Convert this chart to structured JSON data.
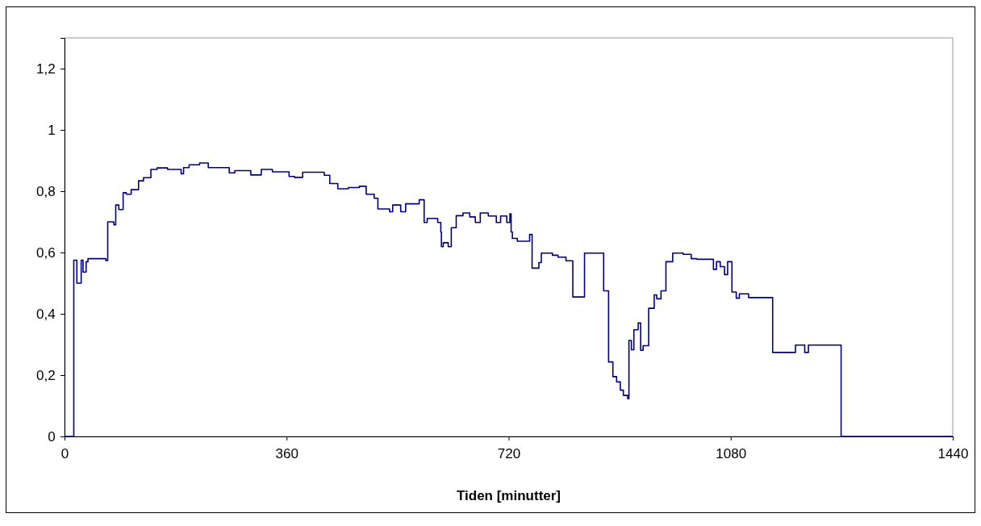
{
  "chart_data": {
    "type": "step",
    "xlabel": "Tiden [minutter]",
    "xlim": [
      0,
      1440
    ],
    "xticks": [
      0,
      360,
      720,
      1080,
      1440
    ],
    "ylim": [
      0,
      1.3
    ],
    "yticks": [
      0,
      {
        "value": 0.2,
        "label": "0,2"
      },
      {
        "value": 0.4,
        "label": "0,4"
      },
      {
        "value": 0.6,
        "label": "0,6"
      },
      {
        "value": 0.8,
        "label": "0,8"
      },
      1,
      {
        "value": 1.2,
        "label": "1,2"
      }
    ],
    "grid": false,
    "marker": "none",
    "line_style": "solid",
    "series": [
      {
        "color": "#000080",
        "x": [
          0,
          15,
          20,
          27,
          30,
          35,
          38,
          67,
          70,
          80,
          83,
          88,
          95,
          100,
          108,
          120,
          128,
          140,
          150,
          167,
          189,
          193,
          202,
          219,
          233,
          267,
          276,
          302,
          319,
          337,
          364,
          373,
          386,
          421,
          430,
          443,
          460,
          478,
          489,
          502,
          508,
          527,
          532,
          545,
          553,
          575,
          583,
          588,
          605,
          610,
          611,
          614,
          622,
          627,
          635,
          646,
          657,
          666,
          674,
          687,
          700,
          707,
          717,
          722,
          724,
          726,
          734,
          754,
          758,
          769,
          773,
          791,
          800,
          813,
          824,
          843,
          874,
          882,
          889,
          895,
          901,
          906,
          913,
          915,
          919,
          923,
          930,
          934,
          938,
          947,
          956,
          960,
          967,
          975,
          986,
          1003,
          1016,
          1025,
          1052,
          1057,
          1063,
          1070,
          1075,
          1082,
          1089,
          1094,
          1109,
          1148,
          1157,
          1185,
          1200,
          1206,
          1221,
          1259,
          1440
        ],
        "values": [
          0,
          0.575,
          0.5,
          0.575,
          0.536,
          0.57,
          0.58,
          0.574,
          0.7,
          0.69,
          0.755,
          0.74,
          0.795,
          0.79,
          0.805,
          0.834,
          0.844,
          0.871,
          0.876,
          0.871,
          0.857,
          0.877,
          0.886,
          0.892,
          0.877,
          0.86,
          0.867,
          0.853,
          0.871,
          0.863,
          0.848,
          0.845,
          0.862,
          0.852,
          0.825,
          0.808,
          0.812,
          0.816,
          0.79,
          0.777,
          0.742,
          0.733,
          0.755,
          0.733,
          0.759,
          0.772,
          0.698,
          0.711,
          0.698,
          0.667,
          0.619,
          0.632,
          0.619,
          0.681,
          0.72,
          0.729,
          0.716,
          0.698,
          0.729,
          0.719,
          0.698,
          0.719,
          0.698,
          0.726,
          0.667,
          0.646,
          0.637,
          0.659,
          0.549,
          0.567,
          0.598,
          0.591,
          0.585,
          0.573,
          0.455,
          0.598,
          0.475,
          0.243,
          0.195,
          0.178,
          0.151,
          0.134,
          0.123,
          0.313,
          0.283,
          0.348,
          0.37,
          0.281,
          0.296,
          0.418,
          0.462,
          0.449,
          0.475,
          0.57,
          0.598,
          0.594,
          0.58,
          0.578,
          0.545,
          0.57,
          0.554,
          0.528,
          0.57,
          0.471,
          0.451,
          0.465,
          0.453,
          0.274,
          0.274,
          0.298,
          0.274,
          0.298,
          0.298,
          0,
          0
        ]
      }
    ]
  }
}
